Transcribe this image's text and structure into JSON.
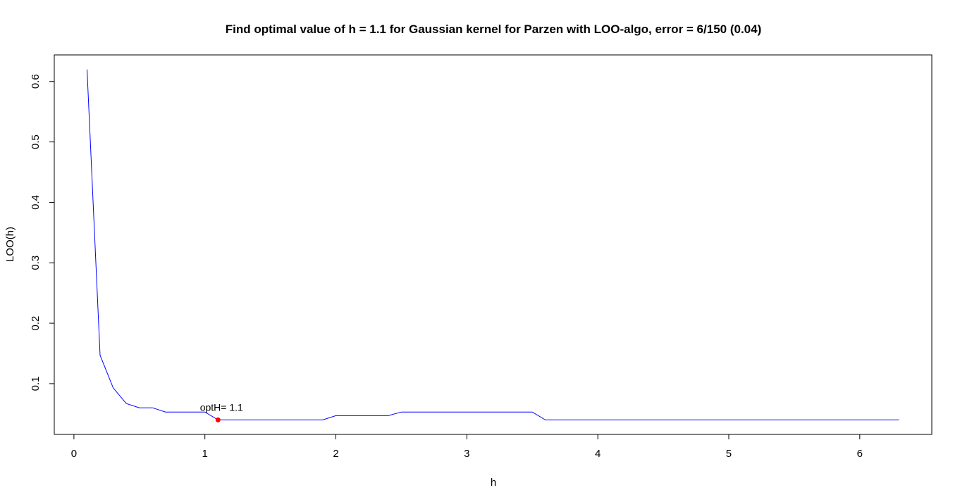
{
  "chart_data": {
    "type": "line",
    "title": "Find optimal value of h = 1.1 for Gaussian kernel for Parzen with LOO-algo, error = 6/150 (0.04)",
    "xlabel": "h",
    "ylabel": "LOO(h)",
    "xlim": [
      -0.15,
      6.55
    ],
    "ylim": [
      0.016,
      0.644
    ],
    "x_ticks": [
      0,
      1,
      2,
      3,
      4,
      5,
      6
    ],
    "y_ticks": [
      0.1,
      0.2,
      0.3,
      0.4,
      0.5,
      0.6
    ],
    "grid": false,
    "series": [
      {
        "color": "#0000ff",
        "x": [
          0.1,
          0.2,
          0.3,
          0.4,
          0.5,
          0.6,
          0.7,
          0.8,
          0.9,
          1.0,
          1.1,
          1.2,
          1.3,
          1.4,
          1.5,
          1.6,
          1.7,
          1.8,
          1.9,
          2.0,
          2.1,
          2.2,
          2.3,
          2.4,
          2.5,
          2.6,
          2.7,
          2.8,
          2.9,
          3.0,
          3.1,
          3.2,
          3.3,
          3.4,
          3.5,
          3.6,
          3.7,
          3.8,
          3.9,
          4.0,
          4.1,
          4.2,
          4.3,
          4.4,
          4.5,
          4.6,
          4.7,
          4.8,
          4.9,
          5.0,
          5.1,
          5.2,
          5.3,
          5.4,
          5.5,
          5.6,
          5.7,
          5.8,
          5.9,
          6.0,
          6.1,
          6.2,
          6.3
        ],
        "y": [
          0.62,
          0.147,
          0.093,
          0.067,
          0.06,
          0.06,
          0.053,
          0.053,
          0.053,
          0.053,
          0.04,
          0.04,
          0.04,
          0.04,
          0.04,
          0.04,
          0.04,
          0.04,
          0.04,
          0.047,
          0.047,
          0.047,
          0.047,
          0.047,
          0.053,
          0.053,
          0.053,
          0.053,
          0.053,
          0.053,
          0.053,
          0.053,
          0.053,
          0.053,
          0.053,
          0.04,
          0.04,
          0.04,
          0.04,
          0.04,
          0.04,
          0.04,
          0.04,
          0.04,
          0.04,
          0.04,
          0.04,
          0.04,
          0.04,
          0.04,
          0.04,
          0.04,
          0.04,
          0.04,
          0.04,
          0.04,
          0.04,
          0.04,
          0.04,
          0.04,
          0.04,
          0.04,
          0.04
        ]
      }
    ],
    "optimum": {
      "x": 1.1,
      "y": 0.04,
      "color": "#ff0000",
      "label": "optH= 1.1"
    }
  }
}
